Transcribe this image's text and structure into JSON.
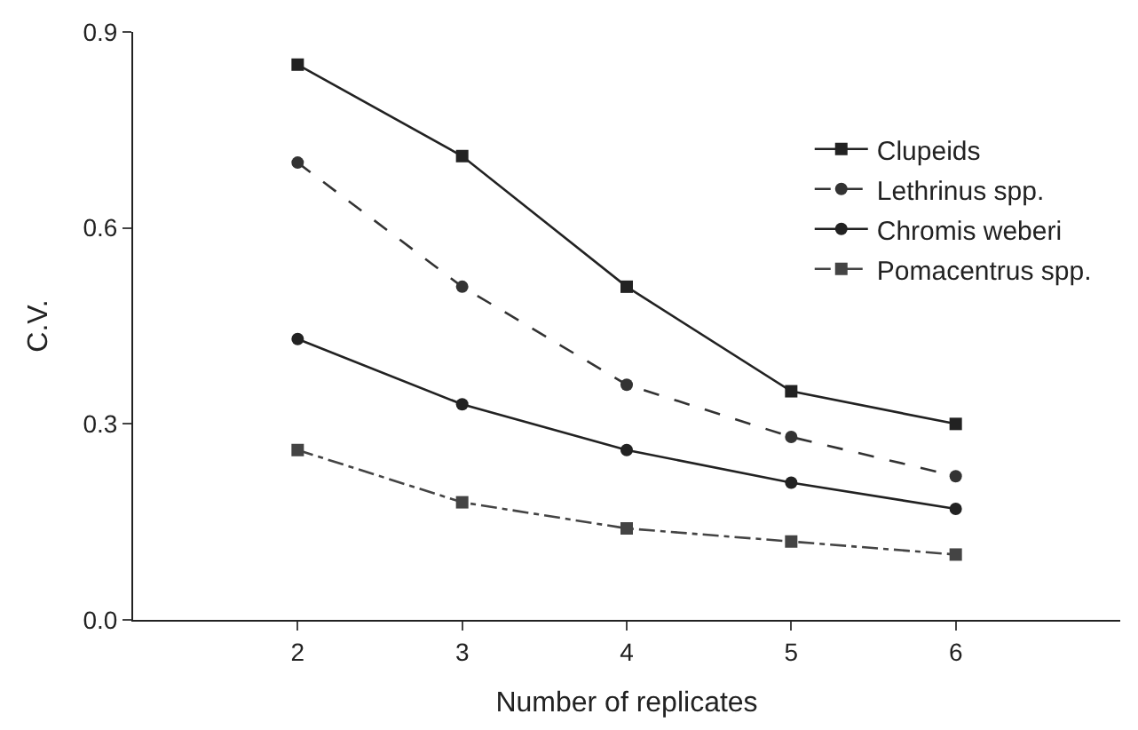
{
  "chart_data": {
    "type": "line",
    "xlabel": "Number of replicates",
    "ylabel": "C.V.",
    "x": [
      2,
      3,
      4,
      5,
      6
    ],
    "xlim": [
      1,
      7
    ],
    "xticks": [
      2,
      3,
      4,
      5,
      6
    ],
    "ylim": [
      0,
      0.9
    ],
    "yticks": [
      "0.0",
      0.3,
      0.6,
      0.9
    ],
    "series": [
      {
        "name": "Clupeids",
        "color": "#222222",
        "marker": "square",
        "line_style": "solid",
        "values": [
          0.85,
          0.71,
          0.51,
          0.35,
          0.3
        ]
      },
      {
        "name": "Lethrinus spp.",
        "color": "#333333",
        "marker": "circle",
        "line_style": "dashed",
        "values": [
          0.7,
          0.51,
          0.36,
          0.28,
          0.22
        ]
      },
      {
        "name": "Chromis weberi",
        "color": "#222222",
        "marker": "circle",
        "line_style": "solid",
        "values": [
          0.43,
          0.33,
          0.26,
          0.21,
          0.17
        ]
      },
      {
        "name": "Pomacentrus spp.",
        "color": "#444444",
        "marker": "square",
        "line_style": "dotted",
        "values": [
          0.26,
          0.18,
          0.14,
          0.12,
          0.1
        ]
      }
    ],
    "legend": "top right"
  }
}
